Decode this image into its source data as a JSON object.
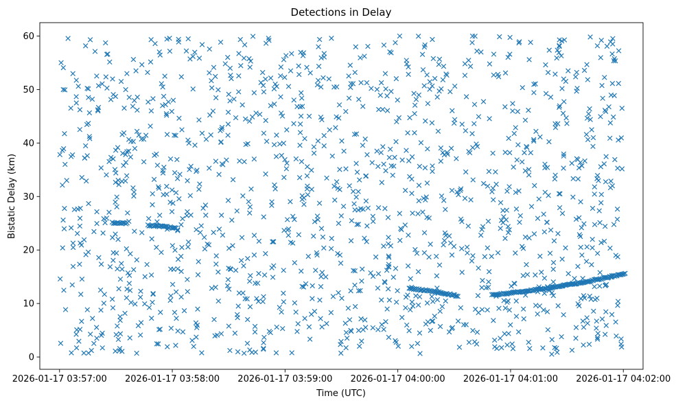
{
  "chart_data": {
    "type": "scatter",
    "title": "Detections in Delay",
    "xlabel": "Time (UTC)",
    "ylabel": "Bistatic Delay (km)",
    "marker": "x",
    "color": "#1f77b4",
    "xlim_seconds_from_035700": [
      -10.5,
      310.5
    ],
    "ylim": [
      -2.3,
      62.5
    ],
    "x_ticks": [
      {
        "seconds": 0,
        "label": "2026-01-17 03:57:00"
      },
      {
        "seconds": 60,
        "label": "2026-01-17 03:58:00"
      },
      {
        "seconds": 120,
        "label": "2026-01-17 03:59:00"
      },
      {
        "seconds": 180,
        "label": "2026-01-17 04:00:00"
      },
      {
        "seconds": 240,
        "label": "2026-01-17 04:01:00"
      },
      {
        "seconds": 300,
        "label": "2026-01-17 04:02:00"
      }
    ],
    "y_ticks": [
      {
        "value": 0,
        "label": "0"
      },
      {
        "value": 10,
        "label": "10"
      },
      {
        "value": 20,
        "label": "20"
      },
      {
        "value": 30,
        "label": "30"
      },
      {
        "value": 40,
        "label": "40"
      },
      {
        "value": 50,
        "label": "50"
      },
      {
        "value": 60,
        "label": "60"
      }
    ],
    "noise_detections": {
      "description": "approximately uniform random clutter",
      "count": 1400,
      "x_range_seconds": [
        0,
        300
      ],
      "y_range": [
        0.5,
        60
      ]
    },
    "tracks": [
      {
        "name": "track-1",
        "x_seconds": [
          28,
          36
        ],
        "y_start": 25.1,
        "y_end": 25.0,
        "points": 14
      },
      {
        "name": "track-2",
        "x_seconds": [
          47,
          62
        ],
        "y_start": 24.6,
        "y_end": 24.1,
        "points": 26
      },
      {
        "name": "track-3",
        "x_seconds": [
          186,
          212
        ],
        "y_start": 12.8,
        "y_end": 11.4,
        "points": 45
      },
      {
        "name": "track-4",
        "x_seconds": [
          230,
          301
        ],
        "y_start": 11.6,
        "y_end": 15.6,
        "points": 130
      }
    ]
  }
}
